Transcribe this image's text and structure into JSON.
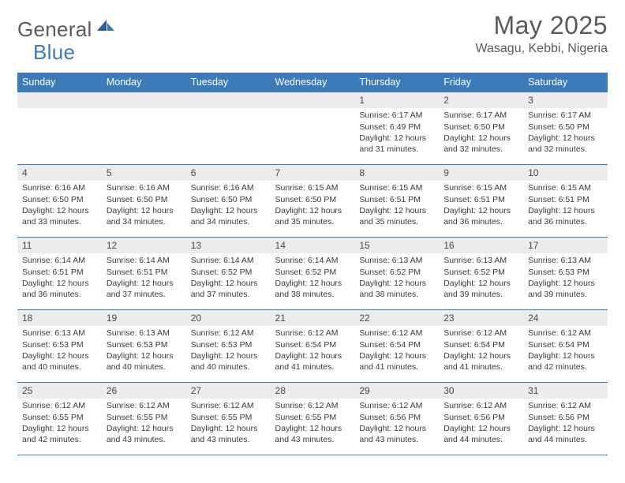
{
  "brand": {
    "word1": "General",
    "word2": "Blue"
  },
  "title": "May 2025",
  "location": "Wasagu, Kebbi, Nigeria",
  "colors": {
    "header_bg": "#3d7ab8",
    "header_text": "#ffffff",
    "daynum_bg": "#ececec",
    "rule": "#3d7ab8",
    "text": "#3a3a3a",
    "title": "#5a5a5a",
    "logo_gray": "#5b5b5b",
    "logo_blue": "#3d7ab8"
  },
  "weekdays": [
    "Sunday",
    "Monday",
    "Tuesday",
    "Wednesday",
    "Thursday",
    "Friday",
    "Saturday"
  ],
  "weeks": [
    [
      null,
      null,
      null,
      null,
      {
        "n": "1",
        "sr": "6:17 AM",
        "ss": "6:49 PM",
        "dl": "12 hours and 31 minutes."
      },
      {
        "n": "2",
        "sr": "6:17 AM",
        "ss": "6:50 PM",
        "dl": "12 hours and 32 minutes."
      },
      {
        "n": "3",
        "sr": "6:17 AM",
        "ss": "6:50 PM",
        "dl": "12 hours and 32 minutes."
      }
    ],
    [
      {
        "n": "4",
        "sr": "6:16 AM",
        "ss": "6:50 PM",
        "dl": "12 hours and 33 minutes."
      },
      {
        "n": "5",
        "sr": "6:16 AM",
        "ss": "6:50 PM",
        "dl": "12 hours and 34 minutes."
      },
      {
        "n": "6",
        "sr": "6:16 AM",
        "ss": "6:50 PM",
        "dl": "12 hours and 34 minutes."
      },
      {
        "n": "7",
        "sr": "6:15 AM",
        "ss": "6:50 PM",
        "dl": "12 hours and 35 minutes."
      },
      {
        "n": "8",
        "sr": "6:15 AM",
        "ss": "6:51 PM",
        "dl": "12 hours and 35 minutes."
      },
      {
        "n": "9",
        "sr": "6:15 AM",
        "ss": "6:51 PM",
        "dl": "12 hours and 36 minutes."
      },
      {
        "n": "10",
        "sr": "6:15 AM",
        "ss": "6:51 PM",
        "dl": "12 hours and 36 minutes."
      }
    ],
    [
      {
        "n": "11",
        "sr": "6:14 AM",
        "ss": "6:51 PM",
        "dl": "12 hours and 36 minutes."
      },
      {
        "n": "12",
        "sr": "6:14 AM",
        "ss": "6:51 PM",
        "dl": "12 hours and 37 minutes."
      },
      {
        "n": "13",
        "sr": "6:14 AM",
        "ss": "6:52 PM",
        "dl": "12 hours and 37 minutes."
      },
      {
        "n": "14",
        "sr": "6:14 AM",
        "ss": "6:52 PM",
        "dl": "12 hours and 38 minutes."
      },
      {
        "n": "15",
        "sr": "6:13 AM",
        "ss": "6:52 PM",
        "dl": "12 hours and 38 minutes."
      },
      {
        "n": "16",
        "sr": "6:13 AM",
        "ss": "6:52 PM",
        "dl": "12 hours and 39 minutes."
      },
      {
        "n": "17",
        "sr": "6:13 AM",
        "ss": "6:53 PM",
        "dl": "12 hours and 39 minutes."
      }
    ],
    [
      {
        "n": "18",
        "sr": "6:13 AM",
        "ss": "6:53 PM",
        "dl": "12 hours and 40 minutes."
      },
      {
        "n": "19",
        "sr": "6:13 AM",
        "ss": "6:53 PM",
        "dl": "12 hours and 40 minutes."
      },
      {
        "n": "20",
        "sr": "6:12 AM",
        "ss": "6:53 PM",
        "dl": "12 hours and 40 minutes."
      },
      {
        "n": "21",
        "sr": "6:12 AM",
        "ss": "6:54 PM",
        "dl": "12 hours and 41 minutes."
      },
      {
        "n": "22",
        "sr": "6:12 AM",
        "ss": "6:54 PM",
        "dl": "12 hours and 41 minutes."
      },
      {
        "n": "23",
        "sr": "6:12 AM",
        "ss": "6:54 PM",
        "dl": "12 hours and 41 minutes."
      },
      {
        "n": "24",
        "sr": "6:12 AM",
        "ss": "6:54 PM",
        "dl": "12 hours and 42 minutes."
      }
    ],
    [
      {
        "n": "25",
        "sr": "6:12 AM",
        "ss": "6:55 PM",
        "dl": "12 hours and 42 minutes."
      },
      {
        "n": "26",
        "sr": "6:12 AM",
        "ss": "6:55 PM",
        "dl": "12 hours and 43 minutes."
      },
      {
        "n": "27",
        "sr": "6:12 AM",
        "ss": "6:55 PM",
        "dl": "12 hours and 43 minutes."
      },
      {
        "n": "28",
        "sr": "6:12 AM",
        "ss": "6:55 PM",
        "dl": "12 hours and 43 minutes."
      },
      {
        "n": "29",
        "sr": "6:12 AM",
        "ss": "6:56 PM",
        "dl": "12 hours and 43 minutes."
      },
      {
        "n": "30",
        "sr": "6:12 AM",
        "ss": "6:56 PM",
        "dl": "12 hours and 44 minutes."
      },
      {
        "n": "31",
        "sr": "6:12 AM",
        "ss": "6:56 PM",
        "dl": "12 hours and 44 minutes."
      }
    ]
  ],
  "labels": {
    "sunrise": "Sunrise:",
    "sunset": "Sunset:",
    "daylight": "Daylight:"
  }
}
